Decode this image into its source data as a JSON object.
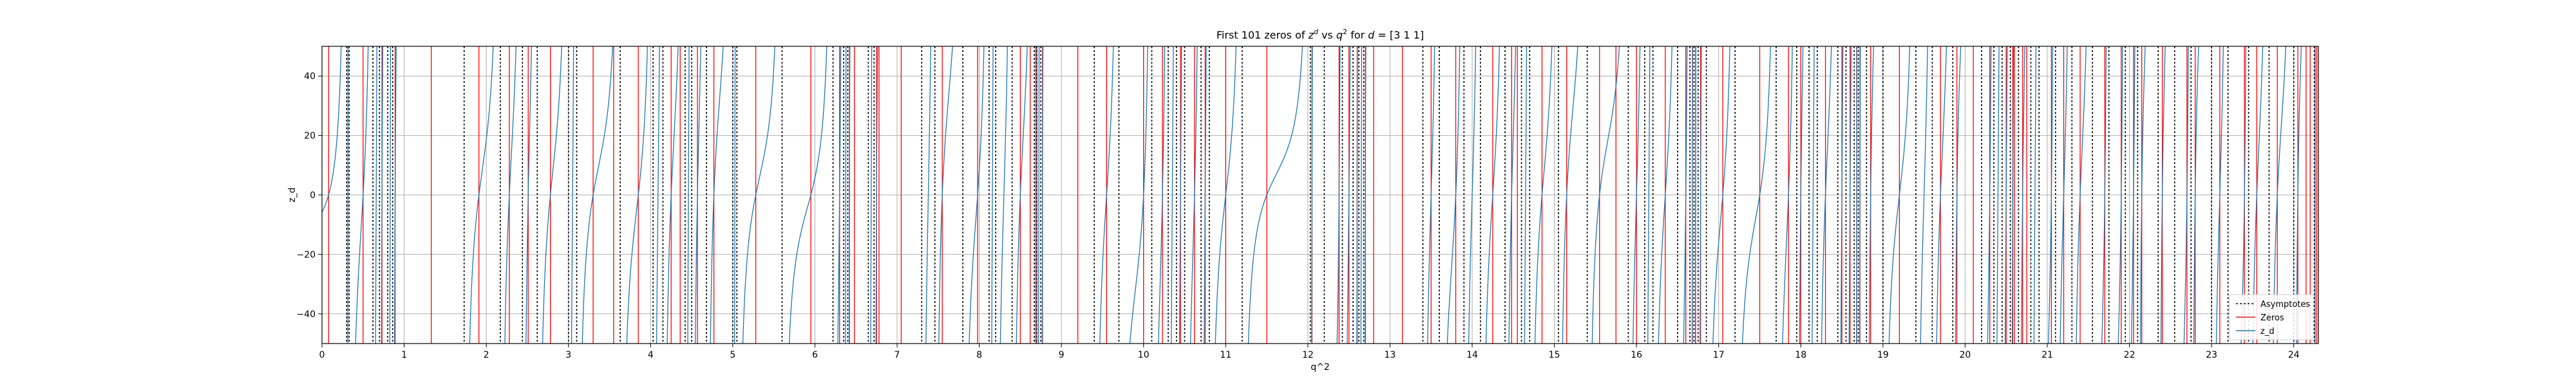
{
  "chart_data": {
    "type": "line",
    "title": {
      "prefix": "First 101 zeros of ",
      "zsym": "z",
      "zsup": "d",
      "mid": " vs ",
      "qsym": "q",
      "qsup": "2",
      "suffix": " for ",
      "dsym": "d",
      "dvalue": " = [3 1 1]"
    },
    "xlabel": "q^2",
    "ylabel": "z_d",
    "xlim": [
      0,
      24.3
    ],
    "ylim": [
      -50,
      50
    ],
    "xticks": [
      0,
      1,
      2,
      3,
      4,
      5,
      6,
      7,
      8,
      9,
      10,
      11,
      12,
      13,
      14,
      15,
      16,
      17,
      18,
      19,
      20,
      21,
      22,
      23,
      24
    ],
    "yticks": [
      -40,
      -20,
      0,
      20,
      40
    ],
    "grid": true,
    "legend": {
      "placement": "lower-right",
      "entries": [
        {
          "label": "Asymptotes",
          "style": "dotted",
          "color": "#000000"
        },
        {
          "label": "Zeros",
          "style": "solid",
          "color": "#d62728"
        },
        {
          "label": "z_d",
          "style": "solid",
          "color": "#1f77b4"
        }
      ]
    },
    "colors": {
      "zeros": "#ff0000",
      "asymptotes": "#000000",
      "curve": "#1f77b4",
      "grid": "#b0b0b0"
    },
    "asymptotes": [
      0.3,
      0.33,
      0.62,
      0.7,
      0.8,
      0.86,
      1.73,
      2.17,
      2.44,
      2.62,
      3.0,
      3.1,
      3.63,
      4.03,
      4.15,
      4.42,
      4.5,
      4.68,
      5.0,
      5.05,
      5.6,
      6.22,
      6.35,
      6.4,
      6.65,
      6.72,
      7.3,
      7.46,
      7.8,
      8.12,
      8.2,
      8.4,
      8.67,
      8.7,
      8.75,
      9.4,
      9.7,
      10.1,
      10.3,
      10.4,
      10.5,
      10.7,
      10.8,
      11.2,
      12.03,
      12.2,
      12.42,
      12.55,
      12.62,
      12.68,
      13.4,
      13.6,
      13.9,
      14.1,
      14.4,
      14.6,
      14.7,
      15.05,
      15.4,
      15.9,
      16.1,
      16.2,
      16.5,
      16.65,
      16.7,
      16.75,
      16.85,
      17.2,
      17.7,
      17.95,
      18.1,
      18.2,
      18.45,
      18.55,
      18.65,
      18.7,
      18.8,
      19.0,
      19.4,
      19.6,
      19.85,
      20.2,
      20.35,
      20.45,
      20.55,
      20.65,
      20.8,
      20.9,
      21.1,
      21.3,
      21.55,
      21.75,
      21.95,
      22.1,
      22.35,
      22.55,
      22.75,
      23.0,
      23.2,
      23.45,
      23.7,
      24.0,
      24.25
    ],
    "zeros": [
      0.08,
      0.5,
      0.73,
      0.89,
      1.33,
      1.91,
      2.28,
      2.51,
      2.78,
      3.3,
      3.55,
      3.85,
      4.25,
      4.36,
      4.57,
      4.77,
      5.28,
      5.95,
      6.3,
      6.42,
      6.48,
      6.75,
      6.78,
      7.05,
      7.55,
      7.98,
      8.5,
      8.62,
      8.7,
      8.77,
      9.2,
      9.55,
      10.0,
      10.23,
      10.45,
      10.62,
      10.75,
      11.0,
      11.5,
      12.05,
      12.38,
      12.5,
      12.6,
      12.7,
      12.8,
      13.15,
      13.5,
      13.8,
      14.25,
      14.48,
      14.55,
      14.85,
      15.15,
      15.55,
      15.75,
      16.0,
      16.35,
      16.6,
      16.68,
      16.72,
      16.78,
      17.05,
      17.5,
      17.85,
      18.0,
      18.3,
      18.5,
      18.6,
      18.68,
      18.72,
      18.85,
      19.2,
      19.7,
      19.9,
      20.1,
      20.3,
      20.5,
      20.58,
      20.6,
      20.7,
      20.75,
      21.05,
      21.2,
      21.4,
      21.7,
      21.9,
      22.05,
      22.15,
      22.4,
      22.7,
      22.8,
      23.1,
      23.4,
      23.55,
      23.8,
      24.05,
      24.15,
      24.2,
      24.26,
      24.28,
      24.3
    ]
  }
}
